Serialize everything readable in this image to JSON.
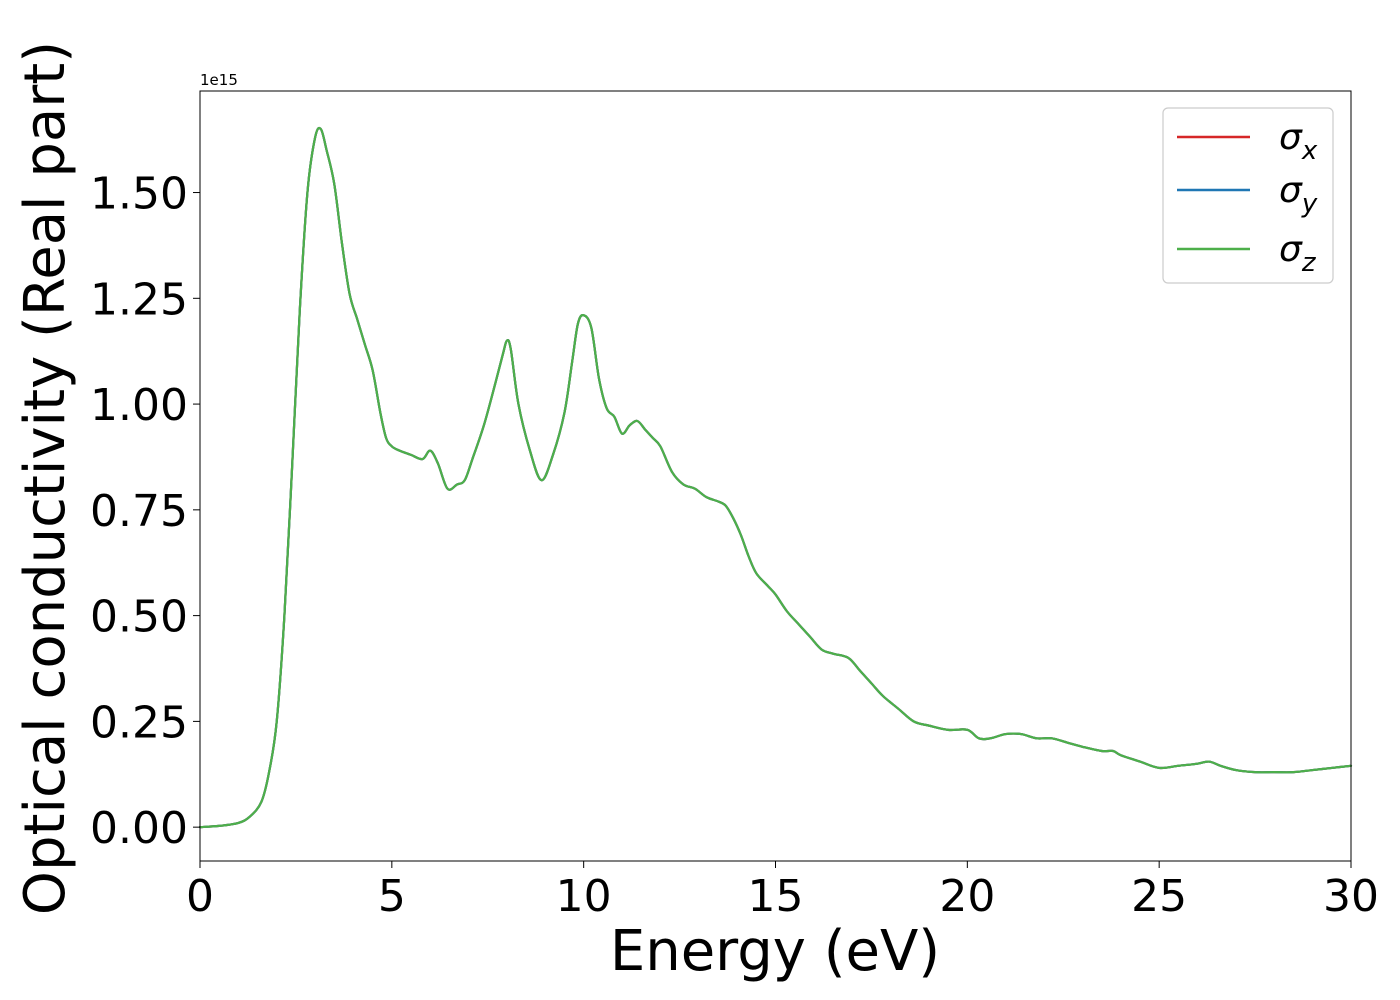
{
  "chart_data": {
    "type": "line",
    "xlabel": "Energy (eV)",
    "ylabel": "Optical conductivity (Real part)",
    "offset_label": "1e15",
    "xlim": [
      0,
      30
    ],
    "ylim": [
      -0.08,
      1.74
    ],
    "xticks": [
      0,
      5,
      10,
      15,
      20,
      25,
      30
    ],
    "xtick_labels": [
      "0",
      "5",
      "10",
      "15",
      "20",
      "25",
      "30"
    ],
    "yticks": [
      0.0,
      0.25,
      0.5,
      0.75,
      1.0,
      1.25,
      1.5
    ],
    "ytick_labels": [
      "0.00",
      "0.25",
      "0.50",
      "0.75",
      "1.00",
      "1.25",
      "1.50"
    ],
    "legend_position": "top-right",
    "grid": false,
    "x": [
      0,
      0.5,
      1.0,
      1.3,
      1.6,
      1.8,
      2.0,
      2.2,
      2.4,
      2.6,
      2.8,
      3.0,
      3.15,
      3.3,
      3.5,
      3.7,
      3.9,
      4.1,
      4.3,
      4.5,
      4.7,
      4.85,
      5.0,
      5.2,
      5.5,
      5.8,
      6.0,
      6.2,
      6.45,
      6.7,
      6.9,
      7.1,
      7.4,
      7.7,
      7.9,
      8.0,
      8.1,
      8.3,
      8.6,
      8.9,
      9.2,
      9.5,
      9.7,
      9.85,
      10.0,
      10.2,
      10.4,
      10.6,
      10.8,
      11.0,
      11.2,
      11.4,
      11.6,
      11.8,
      12.0,
      12.3,
      12.6,
      12.9,
      13.2,
      13.5,
      13.7,
      13.9,
      14.1,
      14.3,
      14.5,
      14.8,
      15.0,
      15.3,
      15.6,
      15.9,
      16.2,
      16.5,
      16.9,
      17.2,
      17.5,
      17.8,
      18.2,
      18.6,
      19.0,
      19.5,
      20.0,
      20.3,
      20.6,
      21.0,
      21.4,
      21.8,
      22.2,
      22.6,
      23.0,
      23.5,
      23.8,
      24.0,
      24.5,
      25.0,
      25.5,
      26.0,
      26.3,
      26.6,
      27.0,
      27.5,
      28.0,
      28.5,
      29.0,
      29.5,
      30.0
    ],
    "series": [
      {
        "name": "σx",
        "color": "#d62728",
        "values": [
          0.0,
          0.003,
          0.01,
          0.025,
          0.06,
          0.13,
          0.25,
          0.5,
          0.85,
          1.22,
          1.5,
          1.63,
          1.65,
          1.6,
          1.52,
          1.38,
          1.26,
          1.2,
          1.14,
          1.08,
          0.98,
          0.92,
          0.9,
          0.89,
          0.88,
          0.87,
          0.89,
          0.86,
          0.8,
          0.81,
          0.82,
          0.87,
          0.95,
          1.05,
          1.12,
          1.15,
          1.13,
          1.0,
          0.89,
          0.82,
          0.88,
          0.98,
          1.1,
          1.19,
          1.21,
          1.18,
          1.06,
          0.99,
          0.97,
          0.93,
          0.95,
          0.96,
          0.94,
          0.92,
          0.9,
          0.84,
          0.81,
          0.8,
          0.78,
          0.77,
          0.76,
          0.73,
          0.69,
          0.64,
          0.6,
          0.57,
          0.55,
          0.51,
          0.48,
          0.45,
          0.42,
          0.41,
          0.4,
          0.37,
          0.34,
          0.31,
          0.28,
          0.25,
          0.24,
          0.23,
          0.23,
          0.21,
          0.21,
          0.22,
          0.22,
          0.21,
          0.21,
          0.2,
          0.19,
          0.18,
          0.18,
          0.17,
          0.155,
          0.14,
          0.145,
          0.15,
          0.155,
          0.145,
          0.135,
          0.13,
          0.13,
          0.13,
          0.135,
          0.14,
          0.145
        ]
      },
      {
        "name": "σy",
        "color": "#1f77b4",
        "values": [
          0.0,
          0.003,
          0.01,
          0.025,
          0.06,
          0.13,
          0.25,
          0.5,
          0.85,
          1.22,
          1.5,
          1.63,
          1.65,
          1.6,
          1.52,
          1.38,
          1.26,
          1.2,
          1.14,
          1.08,
          0.98,
          0.92,
          0.9,
          0.89,
          0.88,
          0.87,
          0.89,
          0.86,
          0.8,
          0.81,
          0.82,
          0.87,
          0.95,
          1.05,
          1.12,
          1.15,
          1.13,
          1.0,
          0.89,
          0.82,
          0.88,
          0.98,
          1.1,
          1.19,
          1.21,
          1.18,
          1.06,
          0.99,
          0.97,
          0.93,
          0.95,
          0.96,
          0.94,
          0.92,
          0.9,
          0.84,
          0.81,
          0.8,
          0.78,
          0.77,
          0.76,
          0.73,
          0.69,
          0.64,
          0.6,
          0.57,
          0.55,
          0.51,
          0.48,
          0.45,
          0.42,
          0.41,
          0.4,
          0.37,
          0.34,
          0.31,
          0.28,
          0.25,
          0.24,
          0.23,
          0.23,
          0.21,
          0.21,
          0.22,
          0.22,
          0.21,
          0.21,
          0.2,
          0.19,
          0.18,
          0.18,
          0.17,
          0.155,
          0.14,
          0.145,
          0.15,
          0.155,
          0.145,
          0.135,
          0.13,
          0.13,
          0.13,
          0.135,
          0.14,
          0.145
        ]
      },
      {
        "name": "σz",
        "color": "#4daf4a",
        "values": [
          0.0,
          0.003,
          0.01,
          0.025,
          0.06,
          0.13,
          0.25,
          0.5,
          0.85,
          1.22,
          1.5,
          1.63,
          1.65,
          1.6,
          1.52,
          1.38,
          1.26,
          1.2,
          1.14,
          1.08,
          0.98,
          0.92,
          0.9,
          0.89,
          0.88,
          0.87,
          0.89,
          0.86,
          0.8,
          0.81,
          0.82,
          0.87,
          0.95,
          1.05,
          1.12,
          1.15,
          1.13,
          1.0,
          0.89,
          0.82,
          0.88,
          0.98,
          1.1,
          1.19,
          1.21,
          1.18,
          1.06,
          0.99,
          0.97,
          0.93,
          0.95,
          0.96,
          0.94,
          0.92,
          0.9,
          0.84,
          0.81,
          0.8,
          0.78,
          0.77,
          0.76,
          0.73,
          0.69,
          0.64,
          0.6,
          0.57,
          0.55,
          0.51,
          0.48,
          0.45,
          0.42,
          0.41,
          0.4,
          0.37,
          0.34,
          0.31,
          0.28,
          0.25,
          0.24,
          0.23,
          0.23,
          0.21,
          0.21,
          0.22,
          0.22,
          0.21,
          0.21,
          0.2,
          0.19,
          0.18,
          0.18,
          0.17,
          0.155,
          0.14,
          0.145,
          0.15,
          0.155,
          0.145,
          0.135,
          0.13,
          0.13,
          0.13,
          0.135,
          0.14,
          0.145
        ]
      }
    ],
    "legend": [
      {
        "symbol": "σ",
        "sub": "x",
        "color": "#d62728"
      },
      {
        "symbol": "σ",
        "sub": "y",
        "color": "#1f77b4"
      },
      {
        "symbol": "σ",
        "sub": "z",
        "color": "#4daf4a"
      }
    ]
  }
}
